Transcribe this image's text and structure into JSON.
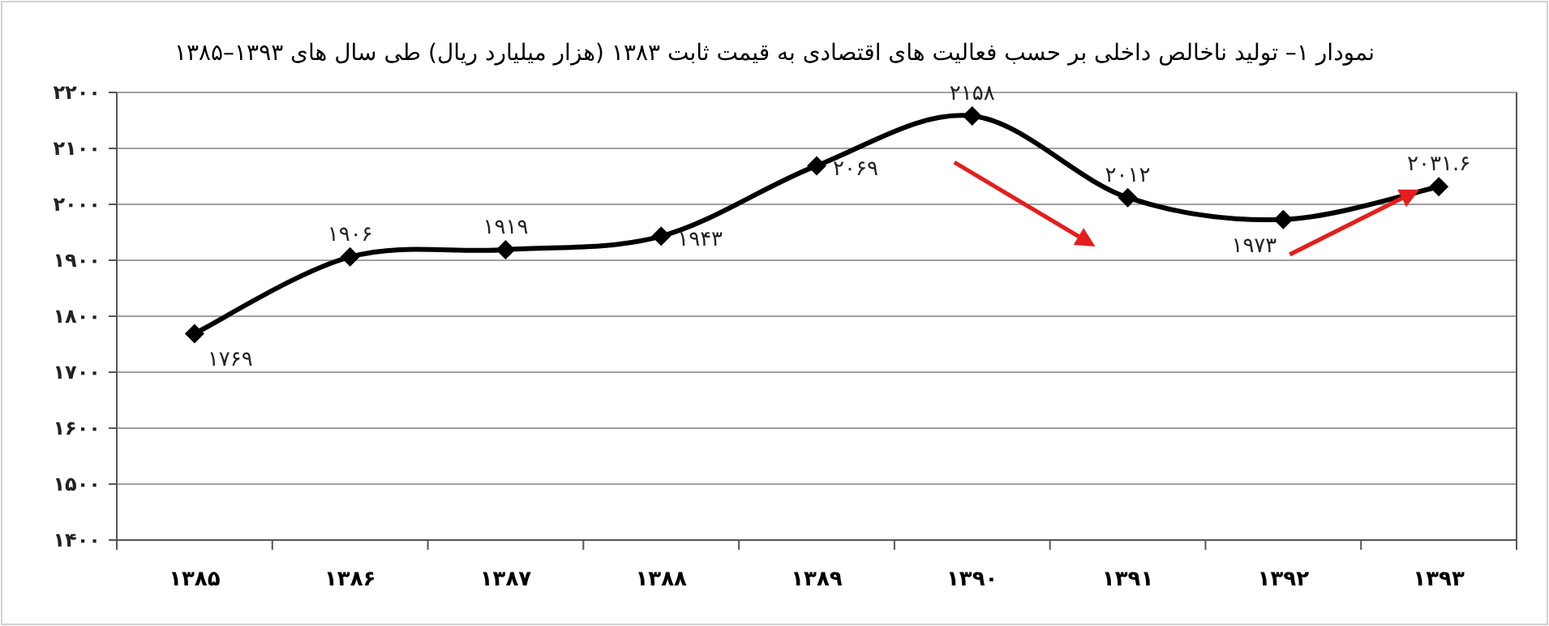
{
  "chart_data": {
    "type": "line",
    "title": "نمودار ۱– تولید ناخالص داخلی بر حسب فعالیت های اقتصادی به قیمت ثابت ۱۳۸۳ (هزار میلیارد ریال) طی سال های ۱۳۹۳–۱۳۸۵",
    "categories": [
      "۱۳۸۵",
      "۱۳۸۶",
      "۱۳۸۷",
      "۱۳۸۸",
      "۱۳۸۹",
      "۱۳۹۰",
      "۱۳۹۱",
      "۱۳۹۲",
      "۱۳۹۳"
    ],
    "series": [
      {
        "color": "#000000",
        "values": [
          1769,
          1906,
          1919,
          1943,
          2069,
          2158,
          2012,
          1973,
          2031.6
        ],
        "value_labels": [
          "۱۷۶۹",
          "۱۹۰۶",
          "۱۹۱۹",
          "۱۹۴۳",
          "۲۰۶۹",
          "۲۱۵۸",
          "۲۰۱۲",
          "۱۹۷۳",
          "۲۰۳۱.۶"
        ]
      }
    ],
    "ylim": [
      1400,
      2200
    ],
    "yticks": [
      {
        "value": 1400,
        "label": "۱۴۰۰"
      },
      {
        "value": 1500,
        "label": "۱۵۰۰"
      },
      {
        "value": 1600,
        "label": "۱۶۰۰"
      },
      {
        "value": 1700,
        "label": "۱۷۰۰"
      },
      {
        "value": 1800,
        "label": "۱۸۰۰"
      },
      {
        "value": 1900,
        "label": "۱۹۰۰"
      },
      {
        "value": 2000,
        "label": "۲۰۰۰"
      },
      {
        "value": 2100,
        "label": "۲۱۰۰"
      },
      {
        "value": 2200,
        "label": "۲۲۰۰"
      }
    ],
    "grid": "y",
    "marker": "diamond",
    "line_style": "solid"
  }
}
